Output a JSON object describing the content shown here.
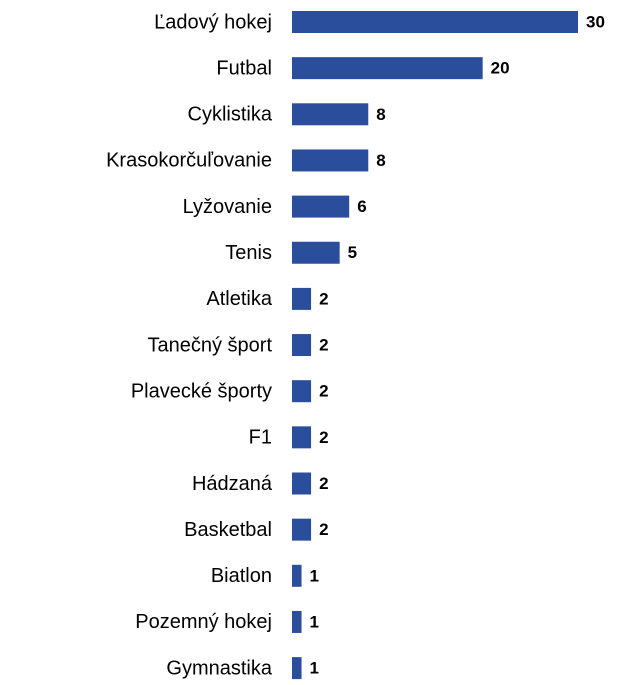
{
  "chart_data": {
    "type": "bar",
    "orientation": "horizontal",
    "categories": [
      "Ľadový hokej",
      "Futbal",
      "Cyklistika",
      "Krasokorčuľovanie",
      "Lyžovanie",
      "Tenis",
      "Atletika",
      "Tanečný šport",
      "Plavecké športy",
      "F1",
      "Hádzaná",
      "Basketbal",
      "Biatlon",
      "Pozemný hokej",
      "Gymnastika"
    ],
    "values": [
      30,
      20,
      8,
      8,
      6,
      5,
      2,
      2,
      2,
      2,
      2,
      2,
      1,
      1,
      1
    ],
    "color": "#2b4e9c"
  }
}
